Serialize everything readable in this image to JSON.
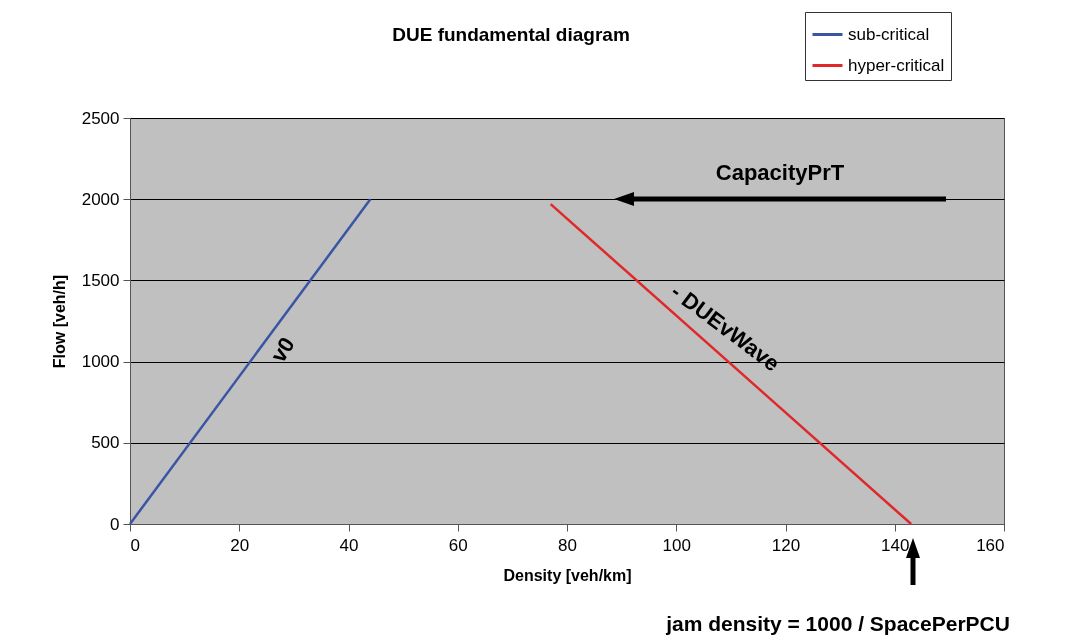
{
  "chart_data": {
    "type": "line",
    "title": "DUE fundamental diagram",
    "xlabel": "Density [veh/km]",
    "ylabel": "Flow [veh/h]",
    "series": [
      {
        "name": "sub-critical",
        "color": "#3a55a4",
        "x": [
          0,
          44
        ],
        "values": [
          0,
          2000
        ]
      },
      {
        "name": "hyper-critical",
        "color": "#e0282a",
        "x": [
          77,
          143
        ],
        "values": [
          1970,
          0
        ]
      }
    ],
    "xlim": [
      0,
      160
    ],
    "xticks": [
      0,
      20,
      40,
      60,
      80,
      100,
      120,
      140,
      160
    ],
    "ylim": [
      0,
      2500
    ],
    "yticks": [
      0,
      500,
      1000,
      1500,
      2000,
      2500
    ],
    "grid": "y",
    "legend": "top right",
    "annotations": [
      "v0",
      "- DUEvWave",
      "CapacityPrT",
      "jam density = 1000 / SpacePerPCU"
    ]
  }
}
